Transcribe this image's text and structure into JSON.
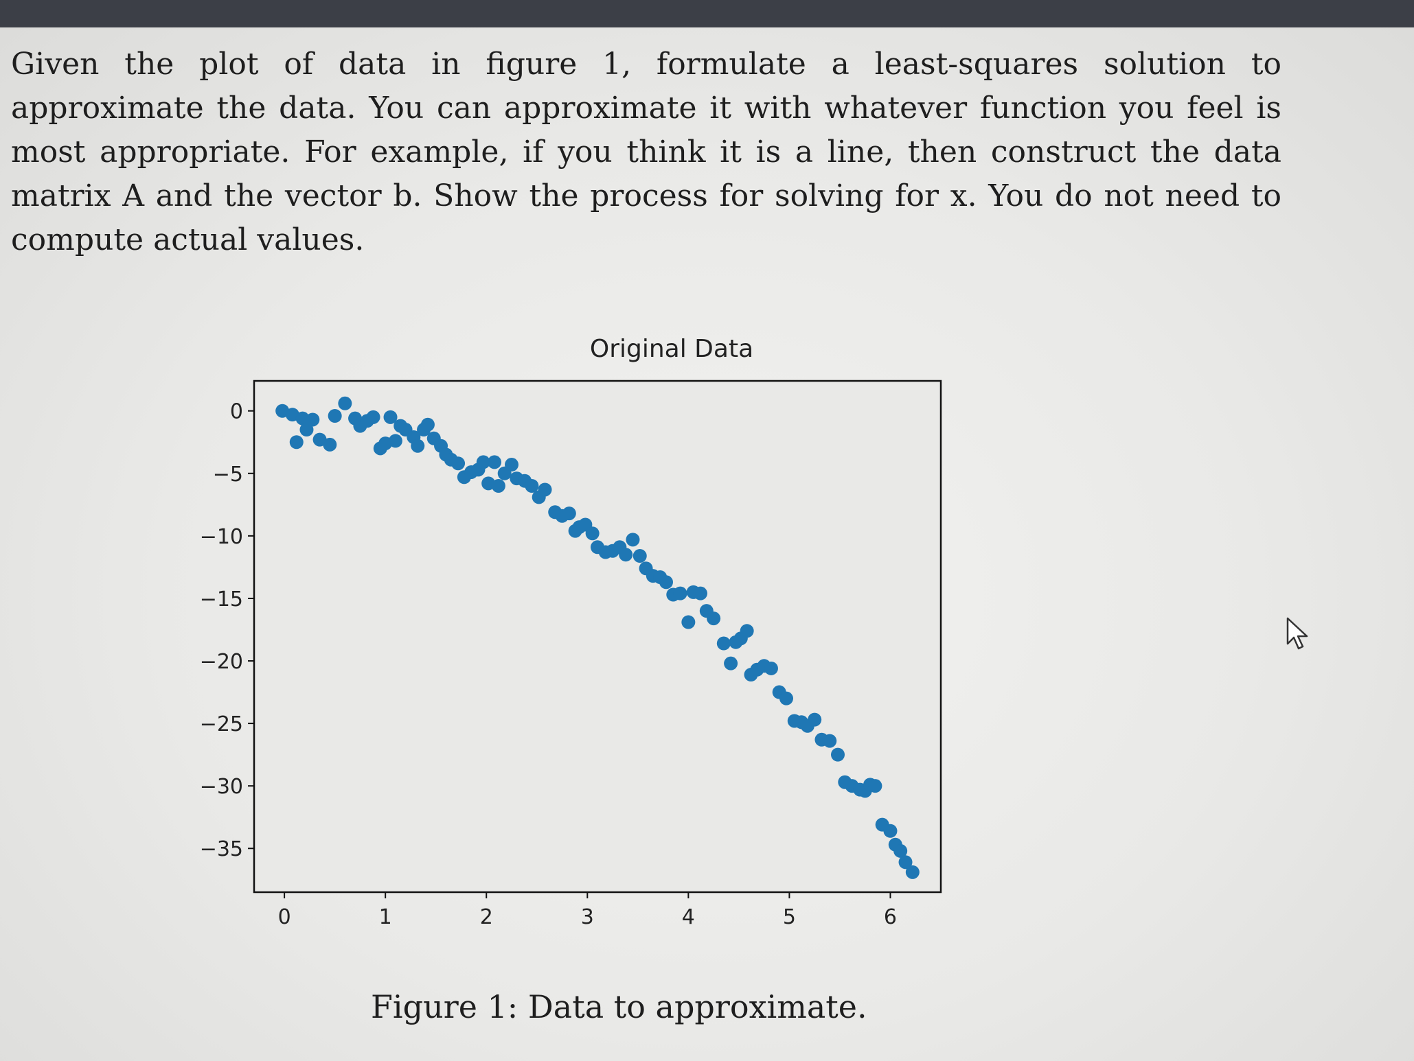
{
  "problem": {
    "text": "Given the plot of data in figure 1, formulate a least-squares solution to approximate the data. You can approximate it with whatever function you feel is most appropriate. For example, if you think it is a line, then construct the data matrix A and the vector b. Show the process for solving for x. You do not need to compute actual values."
  },
  "figure": {
    "caption": "Figure 1: Data to approximate."
  },
  "chart_data": {
    "type": "scatter",
    "title": "Original Data",
    "xlabel": "",
    "ylabel": "",
    "xlim": [
      -0.3,
      6.5
    ],
    "ylim": [
      -38.5,
      2.4
    ],
    "xticks": [
      0,
      1,
      2,
      3,
      4,
      5,
      6
    ],
    "yticks": [
      0,
      -5,
      -10,
      -15,
      -20,
      -25,
      -30,
      -35
    ],
    "xtick_labels": [
      "0",
      "1",
      "2",
      "3",
      "4",
      "5",
      "6"
    ],
    "ytick_labels": [
      "0",
      "−5",
      "−10",
      "−15",
      "−20",
      "−25",
      "−30",
      "−35"
    ],
    "grid": false,
    "marker_color": "#1f77b4",
    "x": [
      -0.02,
      0.08,
      0.12,
      0.18,
      0.22,
      0.28,
      0.35,
      0.45,
      0.5,
      0.6,
      0.7,
      0.75,
      0.82,
      0.88,
      0.95,
      1.0,
      1.05,
      1.1,
      1.15,
      1.2,
      1.28,
      1.32,
      1.38,
      1.42,
      1.48,
      1.55,
      1.6,
      1.65,
      1.72,
      1.78,
      1.85,
      1.92,
      1.97,
      2.02,
      2.08,
      2.12,
      2.18,
      2.25,
      2.3,
      2.38,
      2.45,
      2.52,
      2.58,
      2.68,
      2.75,
      2.82,
      2.88,
      2.92,
      2.98,
      3.05,
      3.1,
      3.18,
      3.25,
      3.32,
      3.38,
      3.45,
      3.52,
      3.58,
      3.65,
      3.72,
      3.78,
      3.85,
      3.92,
      4.0,
      4.05,
      4.12,
      4.18,
      4.25,
      4.35,
      4.42,
      4.47,
      4.52,
      4.58,
      4.62,
      4.68,
      4.75,
      4.82,
      4.9,
      4.97,
      5.05,
      5.12,
      5.18,
      5.25,
      5.32,
      5.4,
      5.48,
      5.55,
      5.62,
      5.7,
      5.75,
      5.8,
      5.85,
      5.92,
      6.0,
      6.05,
      6.1,
      6.15,
      6.22
    ],
    "y": [
      0.0,
      -0.3,
      -2.5,
      -0.6,
      -1.5,
      -0.7,
      -2.3,
      -2.7,
      -0.4,
      0.6,
      -0.6,
      -1.2,
      -0.8,
      -0.5,
      -3.0,
      -2.6,
      -0.5,
      -2.4,
      -1.2,
      -1.5,
      -2.1,
      -2.8,
      -1.5,
      -1.1,
      -2.2,
      -2.8,
      -3.5,
      -3.9,
      -4.2,
      -5.3,
      -4.9,
      -4.7,
      -4.1,
      -5.8,
      -4.1,
      -6.0,
      -5.0,
      -4.3,
      -5.4,
      -5.6,
      -6.0,
      -6.9,
      -6.3,
      -8.1,
      -8.4,
      -8.2,
      -9.6,
      -9.3,
      -9.1,
      -9.8,
      -10.9,
      -11.3,
      -11.2,
      -10.9,
      -11.5,
      -10.3,
      -11.6,
      -12.6,
      -13.2,
      -13.3,
      -13.7,
      -14.7,
      -14.6,
      -16.9,
      -14.5,
      -14.6,
      -16.0,
      -16.6,
      -18.6,
      -20.2,
      -18.5,
      -18.2,
      -17.6,
      -21.1,
      -20.7,
      -20.4,
      -20.6,
      -22.5,
      -23.0,
      -24.8,
      -24.9,
      -25.2,
      -24.7,
      -26.3,
      -26.4,
      -27.5,
      -29.7,
      -30.0,
      -30.3,
      -30.4,
      -29.9,
      -30.0,
      -33.1,
      -33.6,
      -34.7,
      -35.2,
      -36.1,
      -36.9
    ]
  }
}
